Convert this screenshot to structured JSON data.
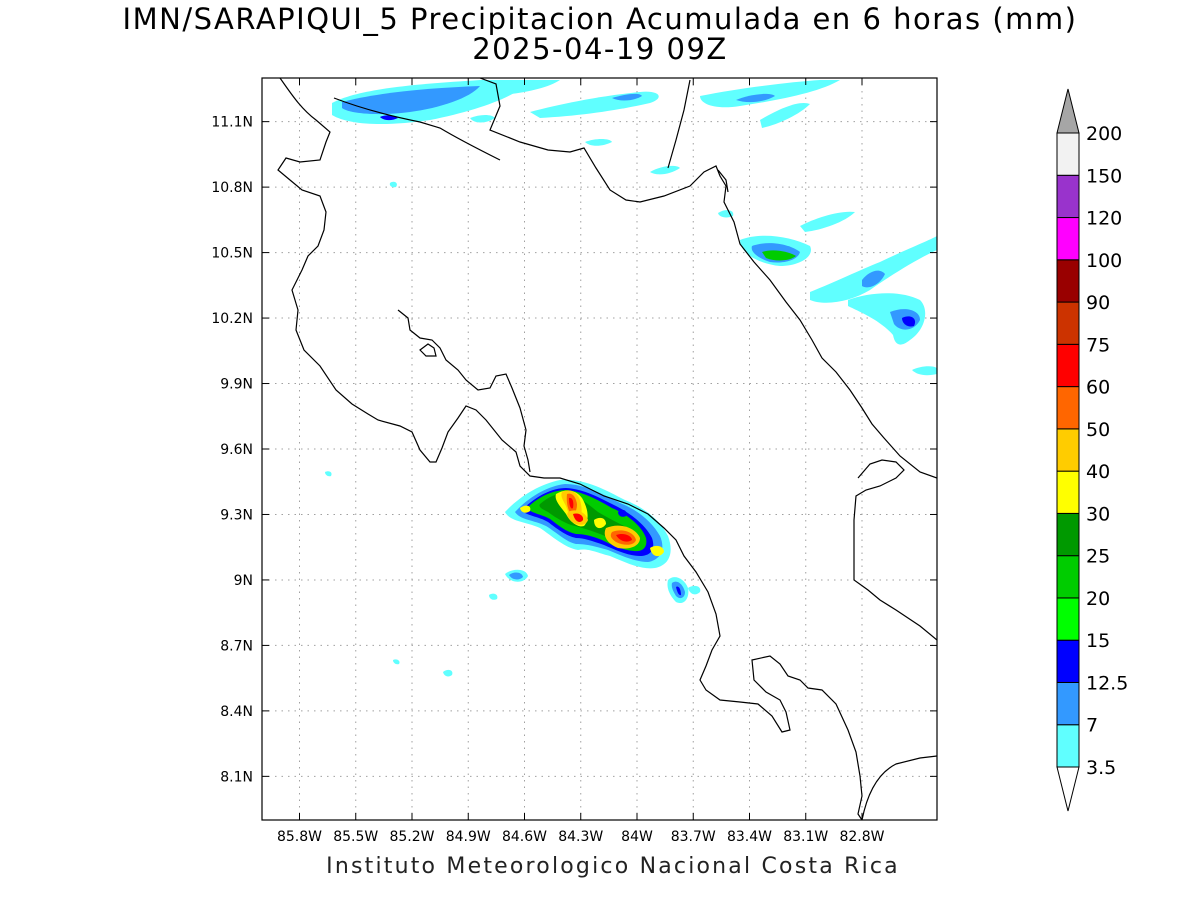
{
  "title": {
    "line1": "IMN/SARAPIQUI_5 Precipitacion Acumulada en 6 horas (mm)",
    "line2": "2025-04-19 09Z"
  },
  "footer": "Instituto Meteorologico Nacional Costa Rica",
  "map": {
    "lon_range": [
      -86.0,
      -82.4
    ],
    "lat_range": [
      7.9,
      11.3
    ],
    "lon_ticks": [
      "85.8W",
      "85.5W",
      "85.2W",
      "84.9W",
      "84.6W",
      "84.3W",
      "84W",
      "83.7W",
      "83.4W",
      "83.1W",
      "82.8W"
    ],
    "lat_ticks": [
      "11.1N",
      "10.8N",
      "10.5N",
      "10.2N",
      "9.9N",
      "9.6N",
      "9.3N",
      "9N",
      "8.7N",
      "8.4N",
      "8.1N"
    ],
    "grid": "dotted"
  },
  "legend": {
    "labels": [
      "3.5",
      "7",
      "12.5",
      "15",
      "20",
      "25",
      "30",
      "40",
      "50",
      "60",
      "75",
      "90",
      "100",
      "120",
      "150",
      "200"
    ],
    "colors": [
      "#60ffff",
      "#3399ff",
      "#0000ff",
      "#00ff00",
      "#00cc00",
      "#009900",
      "#ffff00",
      "#ffcc00",
      "#ff6600",
      "#ff0000",
      "#cc3300",
      "#990000",
      "#ff00ff",
      "#9933cc",
      "#f2f2f2"
    ],
    "over_arrow_color": "#a6a6a6",
    "under_arrow_color": "#ffffff"
  },
  "colors": {
    "coast": "#000000",
    "grid": "#a0a0a0",
    "background": "#ffffff"
  }
}
